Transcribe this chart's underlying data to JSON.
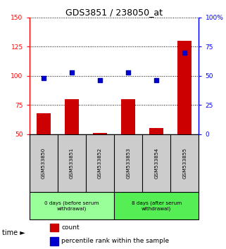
{
  "title": "GDS3851 / 238050_at",
  "samples": [
    "GSM533850",
    "GSM533851",
    "GSM533852",
    "GSM533853",
    "GSM533854",
    "GSM533855"
  ],
  "count_values": [
    68,
    80,
    51,
    80,
    55,
    130
  ],
  "percentile_values": [
    48,
    53,
    46,
    53,
    46,
    70
  ],
  "ylim_left": [
    50,
    150
  ],
  "ylim_right": [
    0,
    100
  ],
  "yticks_left": [
    50,
    75,
    100,
    125,
    150
  ],
  "yticks_right": [
    0,
    25,
    50,
    75,
    100
  ],
  "ytick_labels_left": [
    "50",
    "75",
    "100",
    "125",
    "150"
  ],
  "ytick_labels_right": [
    "0",
    "25",
    "50",
    "75",
    "100%"
  ],
  "group1_label": "0 days (before serum\nwithdrawal)",
  "group2_label": "8 days (after serum\nwithdrawal)",
  "group1_indices": [
    0,
    1,
    2
  ],
  "group2_indices": [
    3,
    4,
    5
  ],
  "bar_color": "#cc0000",
  "dot_color": "#0000cc",
  "bar_width": 0.5,
  "sample_box_color": "#cccccc",
  "group_box_color1": "#99ff99",
  "group_box_color2": "#55ee55",
  "legend_count_label": "count",
  "legend_pct_label": "percentile rank within the sample",
  "title_fontsize": 9
}
